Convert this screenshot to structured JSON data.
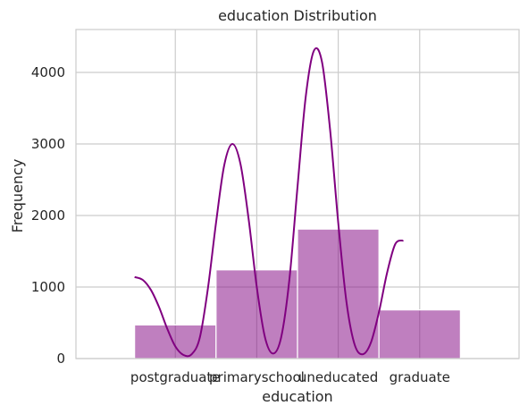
{
  "chart_data": {
    "type": "bar",
    "title": "education Distribution",
    "xlabel": "education",
    "ylabel": "Frequency",
    "categories": [
      "postgraduate",
      "primaryschool",
      "uneducated",
      "graduate"
    ],
    "values": [
      470,
      1240,
      1810,
      680
    ],
    "yticks": [
      0,
      1000,
      2000,
      3000,
      4000
    ],
    "ylim": [
      0,
      4600
    ],
    "bar_color": "#800080",
    "bar_opacity": 0.5,
    "kde_color": "#800080",
    "grid": true,
    "kde": [
      [
        -0.5,
        1140
      ],
      [
        -0.4,
        1100
      ],
      [
        -0.3,
        960
      ],
      [
        -0.2,
        720
      ],
      [
        -0.1,
        420
      ],
      [
        0.0,
        170
      ],
      [
        0.1,
        50
      ],
      [
        0.2,
        60
      ],
      [
        0.3,
        290
      ],
      [
        0.4,
        980
      ],
      [
        0.5,
        1900
      ],
      [
        0.6,
        2700
      ],
      [
        0.7,
        3000
      ],
      [
        0.8,
        2720
      ],
      [
        0.9,
        1950
      ],
      [
        1.0,
        1000
      ],
      [
        1.1,
        300
      ],
      [
        1.2,
        70
      ],
      [
        1.3,
        300
      ],
      [
        1.4,
        1100
      ],
      [
        1.5,
        2400
      ],
      [
        1.6,
        3650
      ],
      [
        1.7,
        4300
      ],
      [
        1.8,
        4150
      ],
      [
        1.9,
        3200
      ],
      [
        2.0,
        1900
      ],
      [
        2.1,
        800
      ],
      [
        2.2,
        200
      ],
      [
        2.3,
        60
      ],
      [
        2.4,
        220
      ],
      [
        2.5,
        650
      ],
      [
        2.6,
        1200
      ],
      [
        2.7,
        1600
      ],
      [
        2.8,
        1650
      ]
    ]
  }
}
